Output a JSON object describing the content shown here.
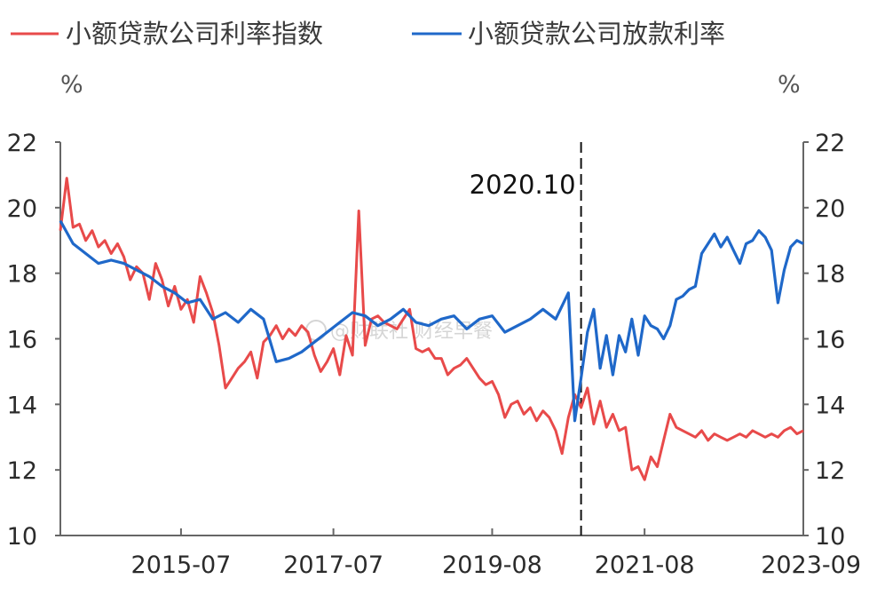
{
  "chart_data": {
    "type": "line",
    "title": "",
    "left_unit": "%",
    "right_unit": "%",
    "ylim": [
      10,
      22
    ],
    "yticks": [
      10,
      12,
      14,
      16,
      18,
      20,
      22
    ],
    "xlim": [
      "2013-12",
      "2023-09"
    ],
    "xticks": [
      "2015-07",
      "2017-07",
      "2019-08",
      "2021-08",
      "2023-09"
    ],
    "annotation": {
      "label": "2020.10",
      "x": "2020-10"
    },
    "watermark": "@财联社 财经早餐",
    "legend_position": "top",
    "series": [
      {
        "name": "小额贷款公司利率指数",
        "color": "#e84a4a",
        "x": [
          "2013-12",
          "2014-01",
          "2014-02",
          "2014-03",
          "2014-04",
          "2014-05",
          "2014-06",
          "2014-07",
          "2014-08",
          "2014-09",
          "2014-10",
          "2014-11",
          "2014-12",
          "2015-01",
          "2015-02",
          "2015-03",
          "2015-04",
          "2015-05",
          "2015-06",
          "2015-07",
          "2015-08",
          "2015-09",
          "2015-10",
          "2015-11",
          "2015-12",
          "2016-01",
          "2016-02",
          "2016-03",
          "2016-04",
          "2016-05",
          "2016-06",
          "2016-07",
          "2016-08",
          "2016-09",
          "2016-10",
          "2016-11",
          "2016-12",
          "2017-01",
          "2017-02",
          "2017-03",
          "2017-04",
          "2017-05",
          "2017-06",
          "2017-07",
          "2017-08",
          "2017-09",
          "2017-10",
          "2017-11",
          "2017-12",
          "2018-01",
          "2018-02",
          "2018-03",
          "2018-04",
          "2018-05",
          "2018-06",
          "2018-07",
          "2018-08",
          "2018-09",
          "2018-10",
          "2018-11",
          "2018-12",
          "2019-01",
          "2019-02",
          "2019-03",
          "2019-04",
          "2019-05",
          "2019-06",
          "2019-07",
          "2019-08",
          "2019-09",
          "2019-10",
          "2019-11",
          "2019-12",
          "2020-01",
          "2020-02",
          "2020-03",
          "2020-04",
          "2020-05",
          "2020-06",
          "2020-07",
          "2020-08",
          "2020-09",
          "2020-10",
          "2020-11",
          "2020-12",
          "2021-01",
          "2021-02",
          "2021-03",
          "2021-04",
          "2021-05",
          "2021-06",
          "2021-07",
          "2021-08",
          "2021-09",
          "2021-10",
          "2021-11",
          "2021-12",
          "2022-01",
          "2022-02",
          "2022-03",
          "2022-04",
          "2022-05",
          "2022-06",
          "2022-07",
          "2022-08",
          "2022-09",
          "2022-10",
          "2022-11",
          "2022-12",
          "2023-01",
          "2023-02",
          "2023-03",
          "2023-04",
          "2023-05",
          "2023-06",
          "2023-07",
          "2023-08",
          "2023-09"
        ],
        "values": [
          19.3,
          20.9,
          19.4,
          19.5,
          19.0,
          19.3,
          18.8,
          19.0,
          18.6,
          18.9,
          18.5,
          17.8,
          18.2,
          18.0,
          17.2,
          18.3,
          17.8,
          17.0,
          17.6,
          16.9,
          17.2,
          16.5,
          17.9,
          17.4,
          16.8,
          15.8,
          14.5,
          14.8,
          15.1,
          15.3,
          15.6,
          14.8,
          15.9,
          16.1,
          16.4,
          16.0,
          16.3,
          16.1,
          16.4,
          16.2,
          15.5,
          15.0,
          15.3,
          15.7,
          14.9,
          16.1,
          15.5,
          19.9,
          15.8,
          16.6,
          16.7,
          16.5,
          16.4,
          16.3,
          16.6,
          16.9,
          15.7,
          15.6,
          15.7,
          15.4,
          15.4,
          14.9,
          15.1,
          15.2,
          15.4,
          15.1,
          14.8,
          14.6,
          14.7,
          14.3,
          13.6,
          14.0,
          14.1,
          13.7,
          13.9,
          13.5,
          13.8,
          13.6,
          13.2,
          12.5,
          13.6,
          14.3,
          13.9,
          14.5,
          13.4,
          14.1,
          13.3,
          13.7,
          13.2,
          13.3,
          12.0,
          12.1,
          11.7,
          12.4,
          12.1,
          12.9,
          13.7,
          13.3,
          13.2,
          13.1,
          13.0,
          13.2,
          12.9,
          13.1,
          13.0,
          12.9,
          13.0,
          13.1,
          13.0,
          13.2,
          13.1,
          13.0,
          13.1,
          13.0,
          13.2,
          13.3,
          13.1,
          13.2
        ],
        "x_explicit_note": "",
        "x2": []
      },
      {
        "name": "小额贷款公司放款利率",
        "color": "#1f68c9",
        "x": [
          "2013-12",
          "2014-02",
          "2014-04",
          "2014-06",
          "2014-08",
          "2014-10",
          "2014-12",
          "2015-02",
          "2015-04",
          "2015-06",
          "2015-08",
          "2015-10",
          "2015-12",
          "2016-02",
          "2016-04",
          "2016-06",
          "2016-08",
          "2016-10",
          "2016-12",
          "2017-02",
          "2017-04",
          "2017-06",
          "2017-08",
          "2017-10",
          "2017-12",
          "2018-02",
          "2018-04",
          "2018-06",
          "2018-08",
          "2018-10",
          "2018-12",
          "2019-02",
          "2019-04",
          "2019-06",
          "2019-08",
          "2019-10",
          "2019-12",
          "2020-02",
          "2020-04",
          "2020-06",
          "2020-08",
          "2020-09",
          "2020-10",
          "2020-11",
          "2020-12",
          "2021-01",
          "2021-02",
          "2021-03",
          "2021-04",
          "2021-05",
          "2021-06",
          "2021-07",
          "2021-08",
          "2021-09",
          "2021-10",
          "2021-11",
          "2021-12",
          "2022-01",
          "2022-02",
          "2022-03",
          "2022-04",
          "2022-05",
          "2022-06",
          "2022-07",
          "2022-08",
          "2022-09",
          "2022-10",
          "2022-11",
          "2022-12",
          "2023-01",
          "2023-02",
          "2023-03",
          "2023-04",
          "2023-05",
          "2023-06",
          "2023-07",
          "2023-08",
          "2023-09"
        ],
        "values": [
          19.6,
          18.9,
          18.6,
          18.3,
          18.4,
          18.3,
          18.1,
          17.9,
          17.6,
          17.4,
          17.1,
          17.2,
          16.6,
          16.8,
          16.5,
          16.9,
          16.6,
          15.3,
          15.4,
          15.6,
          15.9,
          16.2,
          16.5,
          16.8,
          16.7,
          16.4,
          16.6,
          16.9,
          16.5,
          16.4,
          16.6,
          16.7,
          16.3,
          16.6,
          16.7,
          16.2,
          16.4,
          16.6,
          16.9,
          16.6,
          17.4,
          13.5,
          14.8,
          16.2,
          16.9,
          15.1,
          16.1,
          14.9,
          16.1,
          15.6,
          16.6,
          15.5,
          16.7,
          16.4,
          16.3,
          16.0,
          16.4,
          17.2,
          17.3,
          17.5,
          17.6,
          18.6,
          18.9,
          19.2,
          18.8,
          19.1,
          18.7,
          18.3,
          18.9,
          19.0,
          19.3,
          19.1,
          18.7,
          17.1,
          18.1,
          18.8,
          19.0,
          18.9
        ],
        "x_explicit_note": "",
        "x2": []
      }
    ]
  },
  "colors": {
    "axis": "#666666",
    "annotation_line": "#111111"
  }
}
